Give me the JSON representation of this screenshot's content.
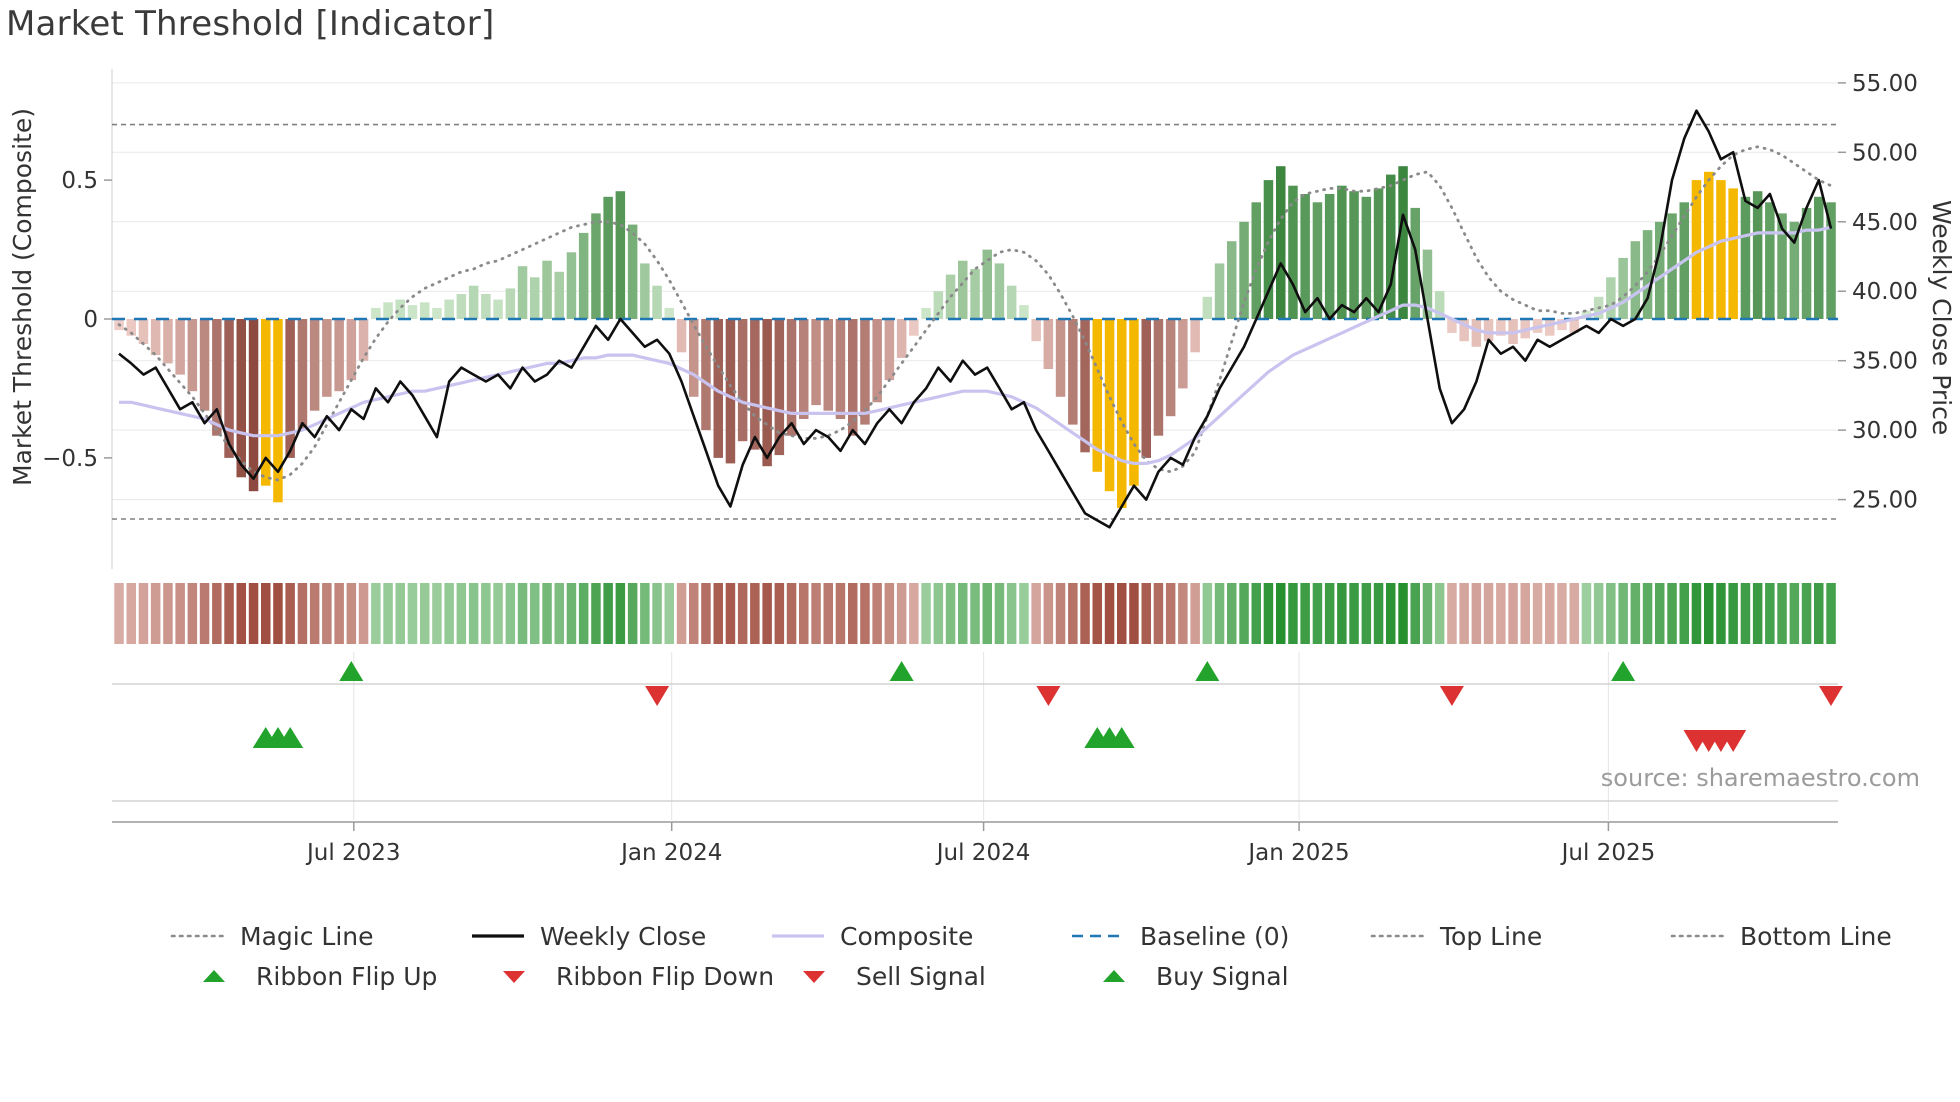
{
  "title": "Market Threshold [Indicator]",
  "source_note": "source: sharemaestro.com",
  "colors": {
    "weekly_close": "#0f0f0f",
    "composite_line": "#c9c3ef",
    "magic_line": "#8a8a8a",
    "baseline": "#1f77b4",
    "top_bottom_line": "#808080",
    "bar_pos_light": "#d8eed4",
    "bar_pos_dark": "#2e7d32",
    "bar_neg_light": "#f5d6d0",
    "bar_neg_dark": "#8e4a3f",
    "bar_gold": "#f5b800",
    "ribbon_pos_light": "#ddf0da",
    "ribbon_pos_dark": "#1e8c28",
    "ribbon_neg_light": "#f6ddd8",
    "ribbon_neg_dark": "#a14f42",
    "signal_green": "#22a32b",
    "signal_red": "#dc3232",
    "grid": "#e9e9e9",
    "axis": "#9a9a9a",
    "tick_text": "#333333"
  },
  "axes": {
    "left_label": "Market Threshold (Composite)",
    "right_label": "Weekly Close Price"
  },
  "legend": {
    "row1": [
      {
        "label": "Magic Line",
        "style": "dotted",
        "color": "#8a8a8a"
      },
      {
        "label": "Weekly Close",
        "style": "solid",
        "color": "#0f0f0f"
      },
      {
        "label": "Composite",
        "style": "solid",
        "color": "#c9c3ef"
      },
      {
        "label": "Baseline (0)",
        "style": "dashed",
        "color": "#1f77b4"
      },
      {
        "label": "Top Line",
        "style": "dotted",
        "color": "#8a8a8a"
      },
      {
        "label": "Bottom Line",
        "style": "dotted",
        "color": "#8a8a8a"
      }
    ],
    "row2": [
      {
        "label": "Ribbon Flip Up",
        "marker": "triangle-up",
        "color": "#22a32b"
      },
      {
        "label": "Ribbon Flip Down",
        "marker": "triangle-down",
        "color": "#dc3232"
      },
      {
        "label": "Sell Signal",
        "marker": "triangle-down",
        "color": "#dc3232"
      },
      {
        "label": "Buy Signal",
        "marker": "triangle-up",
        "color": "#22a32b"
      }
    ]
  },
  "chart_data": {
    "type": "bar+line combo with signal ribbon",
    "x_axis": {
      "tick_labels": [
        "Jul 2023",
        "Jan 2024",
        "Jul 2024",
        "Jan 2025",
        "Jul 2025"
      ],
      "tick_weeks": [
        19.2,
        45.2,
        70.7,
        96.5,
        121.8
      ],
      "n_weeks": 141
    },
    "left_axis": {
      "label": "Market Threshold (Composite)",
      "tick_labels": [
        "0.5",
        "0",
        "−0.5"
      ],
      "tick_values": [
        0.5,
        0,
        -0.5
      ],
      "range": [
        -0.9,
        0.9
      ]
    },
    "right_axis": {
      "label": "Weekly Close Price",
      "tick_labels": [
        "55.00",
        "50.00",
        "45.00",
        "40.00",
        "35.00",
        "30.00",
        "25.00"
      ],
      "tick_values": [
        55,
        50,
        45,
        40,
        35,
        30,
        25
      ],
      "range": [
        20,
        56
      ]
    },
    "reference_lines": {
      "baseline": 0,
      "top_line": 0.7,
      "bottom_line": -0.72
    },
    "composite_bars": [
      -0.04,
      -0.06,
      -0.09,
      -0.13,
      -0.16,
      -0.2,
      -0.26,
      -0.33,
      -0.42,
      -0.5,
      -0.57,
      -0.62,
      -0.6,
      -0.66,
      -0.5,
      -0.4,
      -0.33,
      -0.28,
      -0.26,
      -0.22,
      -0.15,
      0.04,
      0.06,
      0.07,
      0.05,
      0.06,
      0.04,
      0.07,
      0.09,
      0.12,
      0.09,
      0.07,
      0.11,
      0.19,
      0.15,
      0.21,
      0.17,
      0.24,
      0.31,
      0.38,
      0.44,
      0.46,
      0.34,
      0.2,
      0.12,
      0.04,
      -0.12,
      -0.28,
      -0.4,
      -0.5,
      -0.52,
      -0.44,
      -0.47,
      -0.53,
      -0.49,
      -0.42,
      -0.36,
      -0.31,
      -0.33,
      -0.36,
      -0.42,
      -0.38,
      -0.3,
      -0.22,
      -0.14,
      -0.06,
      0.04,
      0.1,
      0.16,
      0.21,
      0.18,
      0.25,
      0.2,
      0.12,
      0.05,
      -0.08,
      -0.18,
      -0.28,
      -0.38,
      -0.48,
      -0.55,
      -0.62,
      -0.68,
      -0.6,
      -0.5,
      -0.42,
      -0.35,
      -0.25,
      -0.12,
      0.08,
      0.2,
      0.28,
      0.35,
      0.42,
      0.5,
      0.55,
      0.48,
      0.45,
      0.42,
      0.45,
      0.48,
      0.46,
      0.44,
      0.47,
      0.52,
      0.55,
      0.4,
      0.25,
      0.1,
      -0.05,
      -0.08,
      -0.1,
      -0.08,
      -0.06,
      -0.09,
      -0.07,
      -0.05,
      -0.06,
      -0.04,
      -0.05,
      0.03,
      0.08,
      0.15,
      0.22,
      0.28,
      0.32,
      0.35,
      0.38,
      0.42,
      0.5,
      0.53,
      0.5,
      0.47,
      0.44,
      0.46,
      0.42,
      0.38,
      0.35,
      0.4,
      0.44,
      0.42
    ],
    "gold_bar_weeks": [
      12,
      13,
      80,
      81,
      82,
      83,
      129,
      130,
      131,
      132
    ],
    "weekly_close": [
      35.5,
      34.8,
      34.0,
      34.5,
      33.0,
      31.5,
      32.0,
      30.5,
      31.5,
      29.0,
      27.5,
      26.5,
      28.0,
      27.0,
      28.5,
      30.5,
      29.5,
      31.0,
      30.0,
      31.5,
      30.8,
      33.0,
      32.0,
      33.5,
      32.5,
      31.0,
      29.5,
      33.5,
      34.5,
      34.0,
      33.5,
      34.0,
      33.0,
      34.5,
      33.5,
      34.0,
      35.0,
      34.5,
      36.0,
      37.5,
      36.5,
      38.0,
      37.0,
      36.0,
      36.5,
      35.5,
      33.5,
      31.0,
      28.5,
      26.0,
      24.5,
      27.5,
      29.5,
      28.0,
      29.5,
      30.5,
      29.0,
      30.0,
      29.5,
      28.5,
      30.0,
      29.0,
      30.5,
      31.5,
      30.5,
      32.0,
      33.0,
      34.5,
      33.5,
      35.0,
      34.0,
      34.5,
      33.0,
      31.5,
      32.0,
      30.0,
      28.5,
      27.0,
      25.5,
      24.0,
      23.5,
      23.0,
      24.5,
      26.0,
      25.0,
      27.0,
      28.0,
      27.5,
      29.5,
      31.0,
      33.0,
      34.5,
      36.0,
      38.0,
      40.0,
      42.0,
      40.5,
      38.5,
      39.5,
      38.0,
      39.0,
      38.5,
      39.5,
      38.5,
      40.5,
      45.5,
      43.0,
      38.0,
      33.0,
      30.5,
      31.5,
      33.5,
      36.5,
      35.5,
      36.0,
      35.0,
      36.5,
      36.0,
      36.5,
      37.0,
      37.5,
      37.0,
      38.0,
      37.5,
      38.0,
      39.5,
      43.0,
      48.0,
      51.0,
      53.0,
      51.5,
      49.5,
      50.0,
      46.5,
      46.0,
      47.0,
      44.5,
      43.5,
      46.0,
      48.0,
      44.5
    ],
    "composite_line": [
      -0.3,
      -0.3,
      -0.31,
      -0.32,
      -0.33,
      -0.34,
      -0.35,
      -0.36,
      -0.38,
      -0.4,
      -0.41,
      -0.42,
      -0.42,
      -0.42,
      -0.41,
      -0.4,
      -0.38,
      -0.36,
      -0.34,
      -0.32,
      -0.3,
      -0.29,
      -0.28,
      -0.27,
      -0.26,
      -0.26,
      -0.25,
      -0.24,
      -0.23,
      -0.22,
      -0.21,
      -0.2,
      -0.19,
      -0.18,
      -0.17,
      -0.16,
      -0.16,
      -0.15,
      -0.14,
      -0.14,
      -0.13,
      -0.13,
      -0.13,
      -0.14,
      -0.15,
      -0.16,
      -0.18,
      -0.2,
      -0.23,
      -0.26,
      -0.28,
      -0.3,
      -0.31,
      -0.32,
      -0.33,
      -0.34,
      -0.34,
      -0.34,
      -0.34,
      -0.34,
      -0.34,
      -0.34,
      -0.33,
      -0.32,
      -0.31,
      -0.3,
      -0.29,
      -0.28,
      -0.27,
      -0.26,
      -0.26,
      -0.26,
      -0.27,
      -0.28,
      -0.3,
      -0.32,
      -0.35,
      -0.38,
      -0.41,
      -0.44,
      -0.47,
      -0.49,
      -0.51,
      -0.52,
      -0.52,
      -0.51,
      -0.49,
      -0.46,
      -0.43,
      -0.39,
      -0.35,
      -0.31,
      -0.27,
      -0.23,
      -0.19,
      -0.16,
      -0.13,
      -0.11,
      -0.09,
      -0.07,
      -0.05,
      -0.03,
      -0.01,
      0.01,
      0.03,
      0.05,
      0.05,
      0.04,
      0.02,
      0.0,
      -0.02,
      -0.04,
      -0.05,
      -0.05,
      -0.05,
      -0.04,
      -0.03,
      -0.02,
      -0.01,
      0.0,
      0.01,
      0.02,
      0.04,
      0.06,
      0.09,
      0.12,
      0.15,
      0.18,
      0.21,
      0.24,
      0.26,
      0.28,
      0.29,
      0.3,
      0.31,
      0.31,
      0.31,
      0.31,
      0.32,
      0.32,
      0.33
    ],
    "magic_line": [
      -0.02,
      -0.05,
      -0.09,
      -0.13,
      -0.18,
      -0.23,
      -0.28,
      -0.34,
      -0.4,
      -0.46,
      -0.51,
      -0.55,
      -0.57,
      -0.58,
      -0.56,
      -0.52,
      -0.46,
      -0.38,
      -0.3,
      -0.22,
      -0.14,
      -0.07,
      -0.01,
      0.04,
      0.08,
      0.11,
      0.13,
      0.15,
      0.17,
      0.18,
      0.2,
      0.21,
      0.23,
      0.25,
      0.27,
      0.29,
      0.31,
      0.33,
      0.34,
      0.35,
      0.35,
      0.34,
      0.31,
      0.27,
      0.21,
      0.14,
      0.06,
      -0.02,
      -0.1,
      -0.17,
      -0.24,
      -0.3,
      -0.35,
      -0.38,
      -0.41,
      -0.42,
      -0.43,
      -0.43,
      -0.42,
      -0.4,
      -0.37,
      -0.33,
      -0.28,
      -0.22,
      -0.16,
      -0.1,
      -0.04,
      0.02,
      0.08,
      0.13,
      0.18,
      0.21,
      0.24,
      0.25,
      0.24,
      0.21,
      0.16,
      0.09,
      0.01,
      -0.08,
      -0.18,
      -0.28,
      -0.37,
      -0.45,
      -0.51,
      -0.54,
      -0.55,
      -0.53,
      -0.48,
      -0.35,
      -0.22,
      -0.08,
      0.06,
      0.18,
      0.28,
      0.36,
      0.42,
      0.45,
      0.46,
      0.47,
      0.47,
      0.46,
      0.46,
      0.47,
      0.48,
      0.5,
      0.52,
      0.53,
      0.48,
      0.4,
      0.31,
      0.22,
      0.15,
      0.1,
      0.07,
      0.05,
      0.03,
      0.03,
      0.02,
      0.02,
      0.03,
      0.04,
      0.05,
      0.08,
      0.12,
      0.17,
      0.23,
      0.3,
      0.37,
      0.44,
      0.5,
      0.55,
      0.59,
      0.61,
      0.62,
      0.61,
      0.59,
      0.56,
      0.53,
      0.5,
      0.48
    ],
    "signals": {
      "ribbon_flip_up_weeks": [
        19,
        64,
        89,
        123
      ],
      "ribbon_flip_down_weeks": [
        44,
        76,
        109,
        140
      ],
      "buy_signal_weeks": [
        12,
        13,
        14,
        80,
        81,
        82
      ],
      "sell_signal_weeks": [
        129,
        130,
        131,
        132
      ]
    }
  }
}
